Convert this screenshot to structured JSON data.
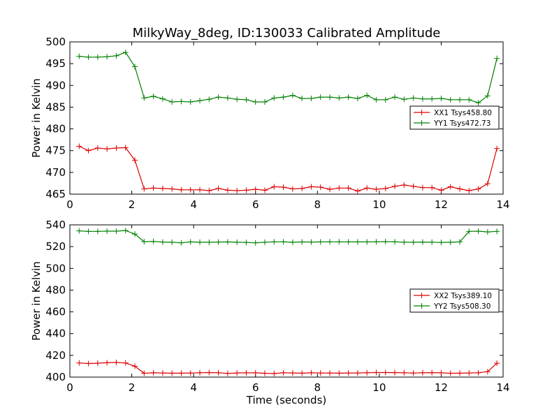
{
  "chart_data": [
    {
      "type": "line",
      "title": "MilkyWay_8deg, ID:130033 Calibrated Amplitude",
      "xlabel": "",
      "ylabel": "Power in Kelvin",
      "xlim": [
        0,
        14
      ],
      "ylim": [
        465,
        500
      ],
      "x_ticks": [
        "0",
        "2",
        "4",
        "6",
        "8",
        "10",
        "12",
        "14"
      ],
      "y_ticks": [
        "465",
        "470",
        "475",
        "480",
        "485",
        "490",
        "495",
        "500"
      ],
      "grid": false,
      "legend_position": "right",
      "x": [
        0.3,
        0.6,
        0.9,
        1.2,
        1.5,
        1.8,
        2.1,
        2.4,
        2.7,
        3.0,
        3.3,
        3.6,
        3.9,
        4.2,
        4.5,
        4.8,
        5.1,
        5.4,
        5.7,
        6.0,
        6.3,
        6.6,
        6.9,
        7.2,
        7.5,
        7.8,
        8.1,
        8.4,
        8.7,
        9.0,
        9.3,
        9.6,
        9.9,
        10.2,
        10.5,
        10.8,
        11.1,
        11.4,
        11.7,
        12.0,
        12.3,
        12.6,
        12.9,
        13.2,
        13.5,
        13.8
      ],
      "series": [
        {
          "name": "XX1 Tsys458.80",
          "color": "#dd0000",
          "values": [
            476.0,
            475.0,
            475.6,
            475.4,
            475.6,
            475.7,
            472.8,
            466.2,
            466.4,
            466.3,
            466.2,
            466.0,
            466.0,
            466.0,
            465.8,
            466.3,
            465.9,
            465.8,
            465.9,
            466.1,
            465.9,
            466.7,
            466.6,
            466.2,
            466.3,
            466.7,
            466.6,
            466.1,
            466.4,
            466.4,
            465.7,
            466.4,
            466.1,
            466.3,
            466.8,
            467.1,
            466.8,
            466.5,
            466.5,
            465.9,
            466.7,
            466.2,
            465.8,
            466.2,
            467.4,
            475.5
          ]
        },
        {
          "name": "YY1 Tsys472.73",
          "color": "#008000",
          "values": [
            496.7,
            496.5,
            496.5,
            496.6,
            496.8,
            497.6,
            494.3,
            487.1,
            487.5,
            486.9,
            486.2,
            486.3,
            486.2,
            486.5,
            486.8,
            487.3,
            487.1,
            486.8,
            486.7,
            486.2,
            486.2,
            487.1,
            487.3,
            487.7,
            487.0,
            487.0,
            487.3,
            487.3,
            487.1,
            487.3,
            487.0,
            487.7,
            486.7,
            486.7,
            487.3,
            486.8,
            487.1,
            486.9,
            486.9,
            487.0,
            486.7,
            486.7,
            486.7,
            486.0,
            487.6,
            496.2
          ]
        }
      ]
    },
    {
      "type": "line",
      "title": "",
      "xlabel": "Time (seconds)",
      "ylabel": "Power in Kelvin",
      "xlim": [
        0,
        14
      ],
      "ylim": [
        400,
        540
      ],
      "x_ticks": [
        "0",
        "2",
        "4",
        "6",
        "8",
        "10",
        "12",
        "14"
      ],
      "y_ticks": [
        "400",
        "420",
        "440",
        "460",
        "480",
        "500",
        "520",
        "540"
      ],
      "grid": false,
      "legend_position": "right",
      "x": [
        0.3,
        0.6,
        0.9,
        1.2,
        1.5,
        1.8,
        2.1,
        2.4,
        2.7,
        3.0,
        3.3,
        3.6,
        3.9,
        4.2,
        4.5,
        4.8,
        5.1,
        5.4,
        5.7,
        6.0,
        6.3,
        6.6,
        6.9,
        7.2,
        7.5,
        7.8,
        8.1,
        8.4,
        8.7,
        9.0,
        9.3,
        9.6,
        9.9,
        10.2,
        10.5,
        10.8,
        11.1,
        11.4,
        11.7,
        12.0,
        12.3,
        12.6,
        12.9,
        13.2,
        13.5,
        13.8
      ],
      "series": [
        {
          "name": "XX2 Tsys389.10",
          "color": "#dd0000",
          "values": [
            413.0,
            412.5,
            412.8,
            413.2,
            413.5,
            413.0,
            410.0,
            403.5,
            404.0,
            403.8,
            403.6,
            403.6,
            403.7,
            404.0,
            404.2,
            404.0,
            403.4,
            403.8,
            403.9,
            403.9,
            403.5,
            403.3,
            404.0,
            403.8,
            403.6,
            404.0,
            403.8,
            403.7,
            403.6,
            403.8,
            403.8,
            404.0,
            404.2,
            404.2,
            404.1,
            404.0,
            403.7,
            404.0,
            404.1,
            403.9,
            403.5,
            403.6,
            403.8,
            404.0,
            405.0,
            412.8
          ]
        },
        {
          "name": "YY2 Tsys508.30",
          "color": "#008000",
          "values": [
            534.5,
            534.0,
            534.0,
            534.2,
            534.2,
            534.8,
            531.5,
            524.5,
            524.8,
            524.2,
            524.0,
            523.5,
            524.3,
            524.0,
            524.0,
            524.2,
            524.3,
            524.0,
            523.8,
            523.5,
            524.0,
            524.4,
            524.4,
            524.0,
            524.3,
            524.2,
            524.3,
            524.4,
            524.4,
            524.3,
            524.3,
            524.3,
            524.4,
            524.6,
            524.4,
            524.1,
            524.0,
            524.2,
            524.1,
            523.8,
            524.0,
            524.3,
            534.0,
            534.2,
            533.5,
            534.0
          ]
        }
      ]
    }
  ]
}
